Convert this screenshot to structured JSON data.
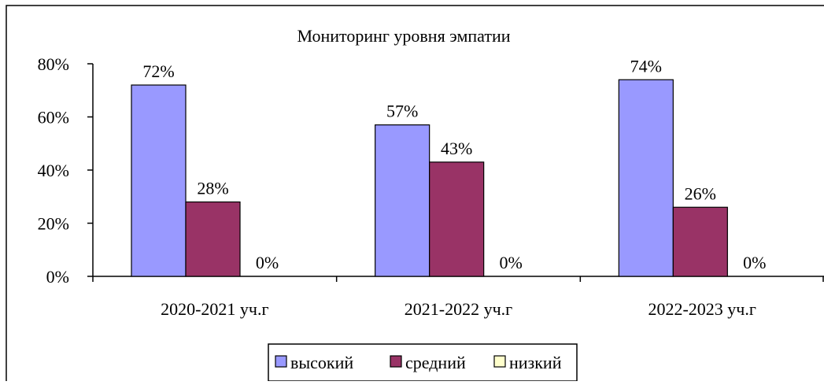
{
  "chart_data": {
    "type": "bar",
    "title": "Мониторинг уровня эмпатии",
    "categories": [
      "2020-2021 уч.г",
      "2021-2022 уч.г",
      "2022-2023 уч.г"
    ],
    "series": [
      {
        "name": "высокий",
        "values": [
          72,
          57,
          74
        ],
        "color": "#9999ff",
        "labels": [
          "72%",
          "57%",
          "74%"
        ]
      },
      {
        "name": "средний",
        "values": [
          28,
          43,
          26
        ],
        "color": "#993366",
        "labels": [
          "28%",
          "43%",
          "26%"
        ]
      },
      {
        "name": "низкий",
        "values": [
          0,
          0,
          0
        ],
        "color": "#ffffcc",
        "labels": [
          "0%",
          "0%",
          "0%"
        ]
      }
    ],
    "ylim": [
      0,
      80
    ],
    "yticks": [
      0,
      20,
      40,
      60,
      80
    ],
    "ytick_labels": [
      "0%",
      "20%",
      "40%",
      "60%",
      "80%"
    ],
    "grid": false,
    "legend_position": "bottom",
    "xlabel": "",
    "ylabel": ""
  }
}
